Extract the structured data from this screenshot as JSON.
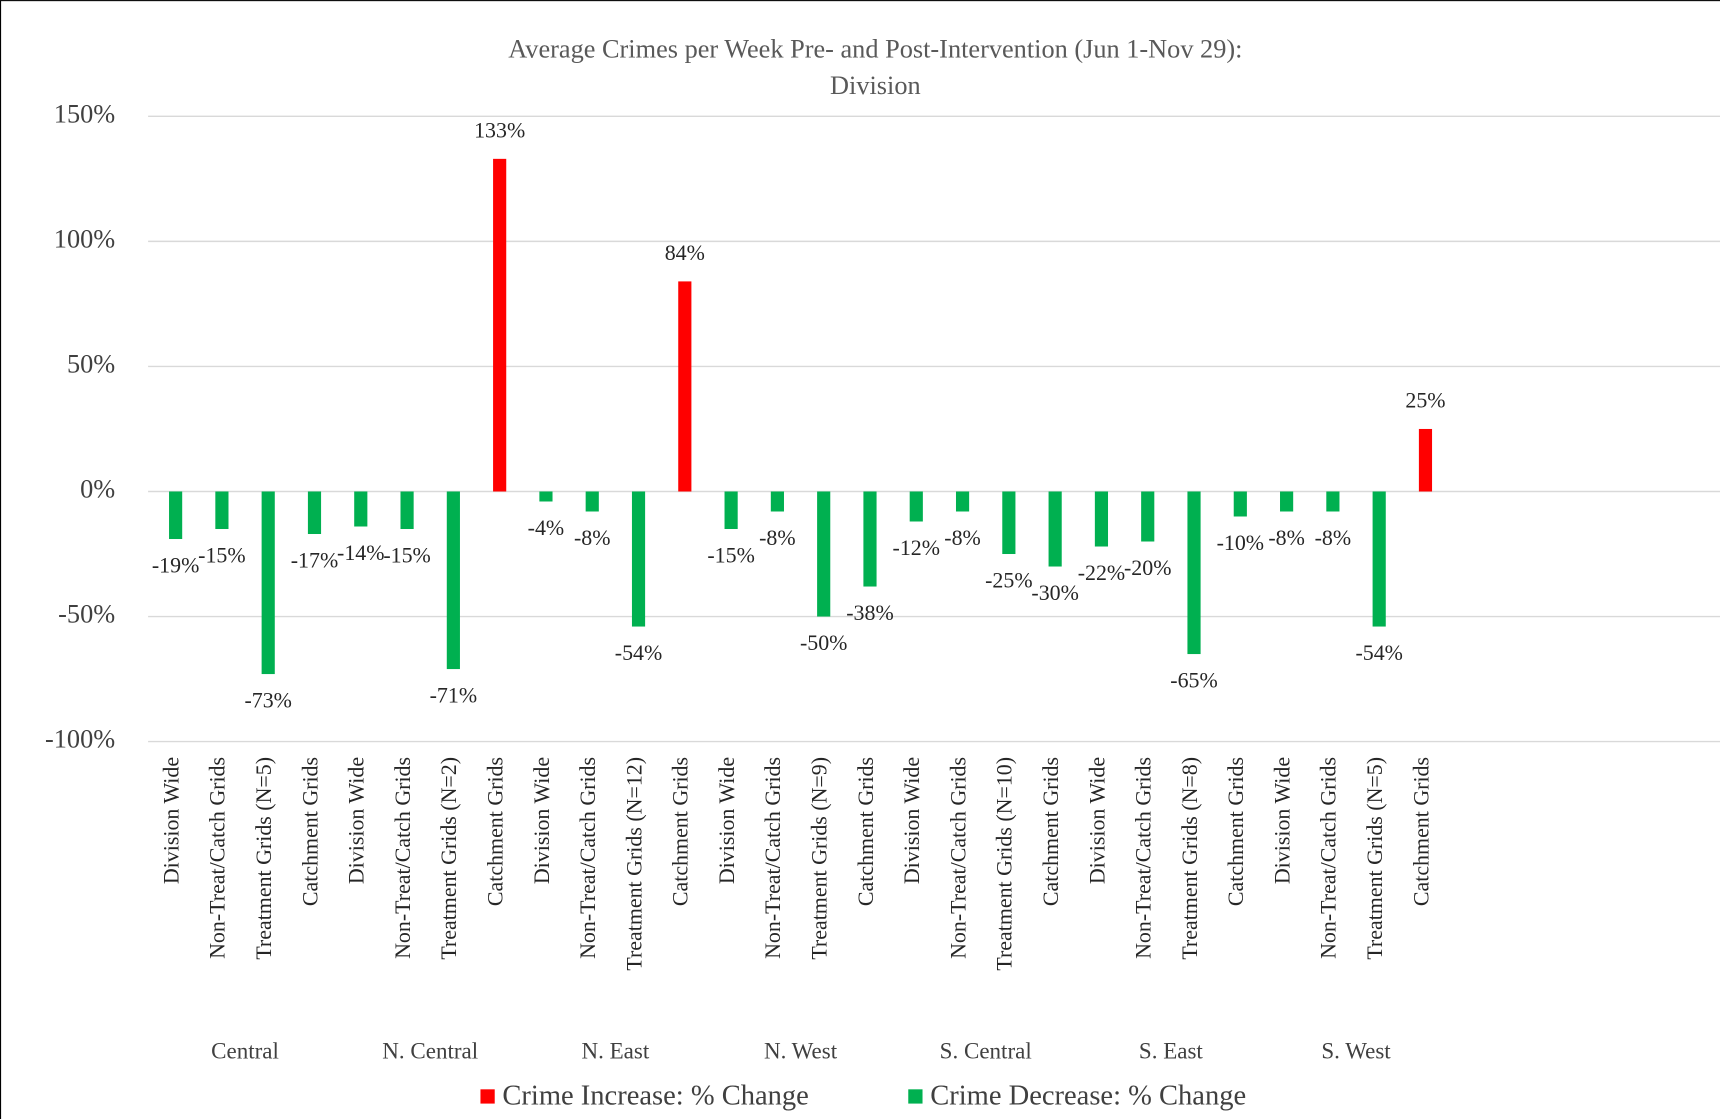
{
  "chart_data": {
    "type": "bar",
    "title": [
      "Average Crimes per Week  Pre- and Post-Intervention (Jun 1-Nov 29):",
      "Division"
    ],
    "groups": [
      "Central",
      "N. Central",
      "N. East",
      "N. West",
      "S. Central",
      "S. East",
      "S. West"
    ],
    "categories": [
      "Division Wide",
      "Non-Treat/Catch Grids",
      "Treatment Grids (N=5)",
      "Catchment Grids",
      "Division Wide",
      "Non-Treat/Catch Grids",
      "Treatment Grids (N=2)",
      "Catchment Grids",
      "Division Wide",
      "Non-Treat/Catch Grids",
      "Treatment Grids (N=12)",
      "Catchment Grids",
      "Division Wide",
      "Non-Treat/Catch Grids",
      "Treatment Grids (N=9)",
      "Catchment Grids",
      "Division Wide",
      "Non-Treat/Catch Grids",
      "Treatment Grids (N=10)",
      "Catchment Grids",
      "Division Wide",
      "Non-Treat/Catch Grids",
      "Treatment Grids (N=8)",
      "Catchment Grids",
      "Division Wide",
      "Non-Treat/Catch Grids",
      "Treatment Grids (N=5)",
      "Catchment Grids"
    ],
    "series": [
      {
        "name": "Crime Increase: % Change",
        "color": "#ff0000",
        "values": [
          null,
          null,
          null,
          null,
          null,
          null,
          null,
          133,
          null,
          null,
          null,
          84,
          null,
          null,
          null,
          null,
          null,
          null,
          null,
          null,
          null,
          null,
          null,
          null,
          null,
          null,
          null,
          25
        ],
        "value_labels": [
          null,
          null,
          null,
          null,
          null,
          null,
          null,
          "133%",
          null,
          null,
          null,
          "84%",
          null,
          null,
          null,
          null,
          null,
          null,
          null,
          null,
          null,
          null,
          null,
          null,
          null,
          null,
          null,
          "25%"
        ]
      },
      {
        "name": "Crime Decrease: % Change",
        "color": "#00b050",
        "values": [
          -19,
          -15,
          -73,
          -17,
          -14,
          -15,
          -71,
          null,
          -4,
          -8,
          -54,
          null,
          -15,
          -8,
          -50,
          -38,
          -12,
          -8,
          -25,
          -30,
          -22,
          -20,
          -65,
          -10,
          -8,
          -8,
          -54,
          null
        ],
        "value_labels": [
          "-19%",
          "-15%",
          "-73%",
          "-17%",
          "-14%",
          "-15%",
          "-71%",
          null,
          "-4%",
          "-8%",
          "-54%",
          null,
          "-15%",
          "-8%",
          "-50%",
          "-38%",
          "-12%",
          "-8%",
          "-25%",
          "-30%",
          "-22%",
          "-20%",
          "-65%",
          "-10%",
          "-8%",
          "-8%",
          "-54%",
          null
        ]
      }
    ],
    "ylim": [
      -100,
      150
    ],
    "yticks": [
      {
        "value": -100,
        "label": "-100%"
      },
      {
        "value": -50,
        "label": "-50%"
      },
      {
        "value": 0,
        "label": "0%"
      },
      {
        "value": 50,
        "label": "50%"
      },
      {
        "value": 100,
        "label": "100%"
      },
      {
        "value": 150,
        "label": "150%"
      }
    ],
    "grid": true,
    "legend": "bottom"
  }
}
